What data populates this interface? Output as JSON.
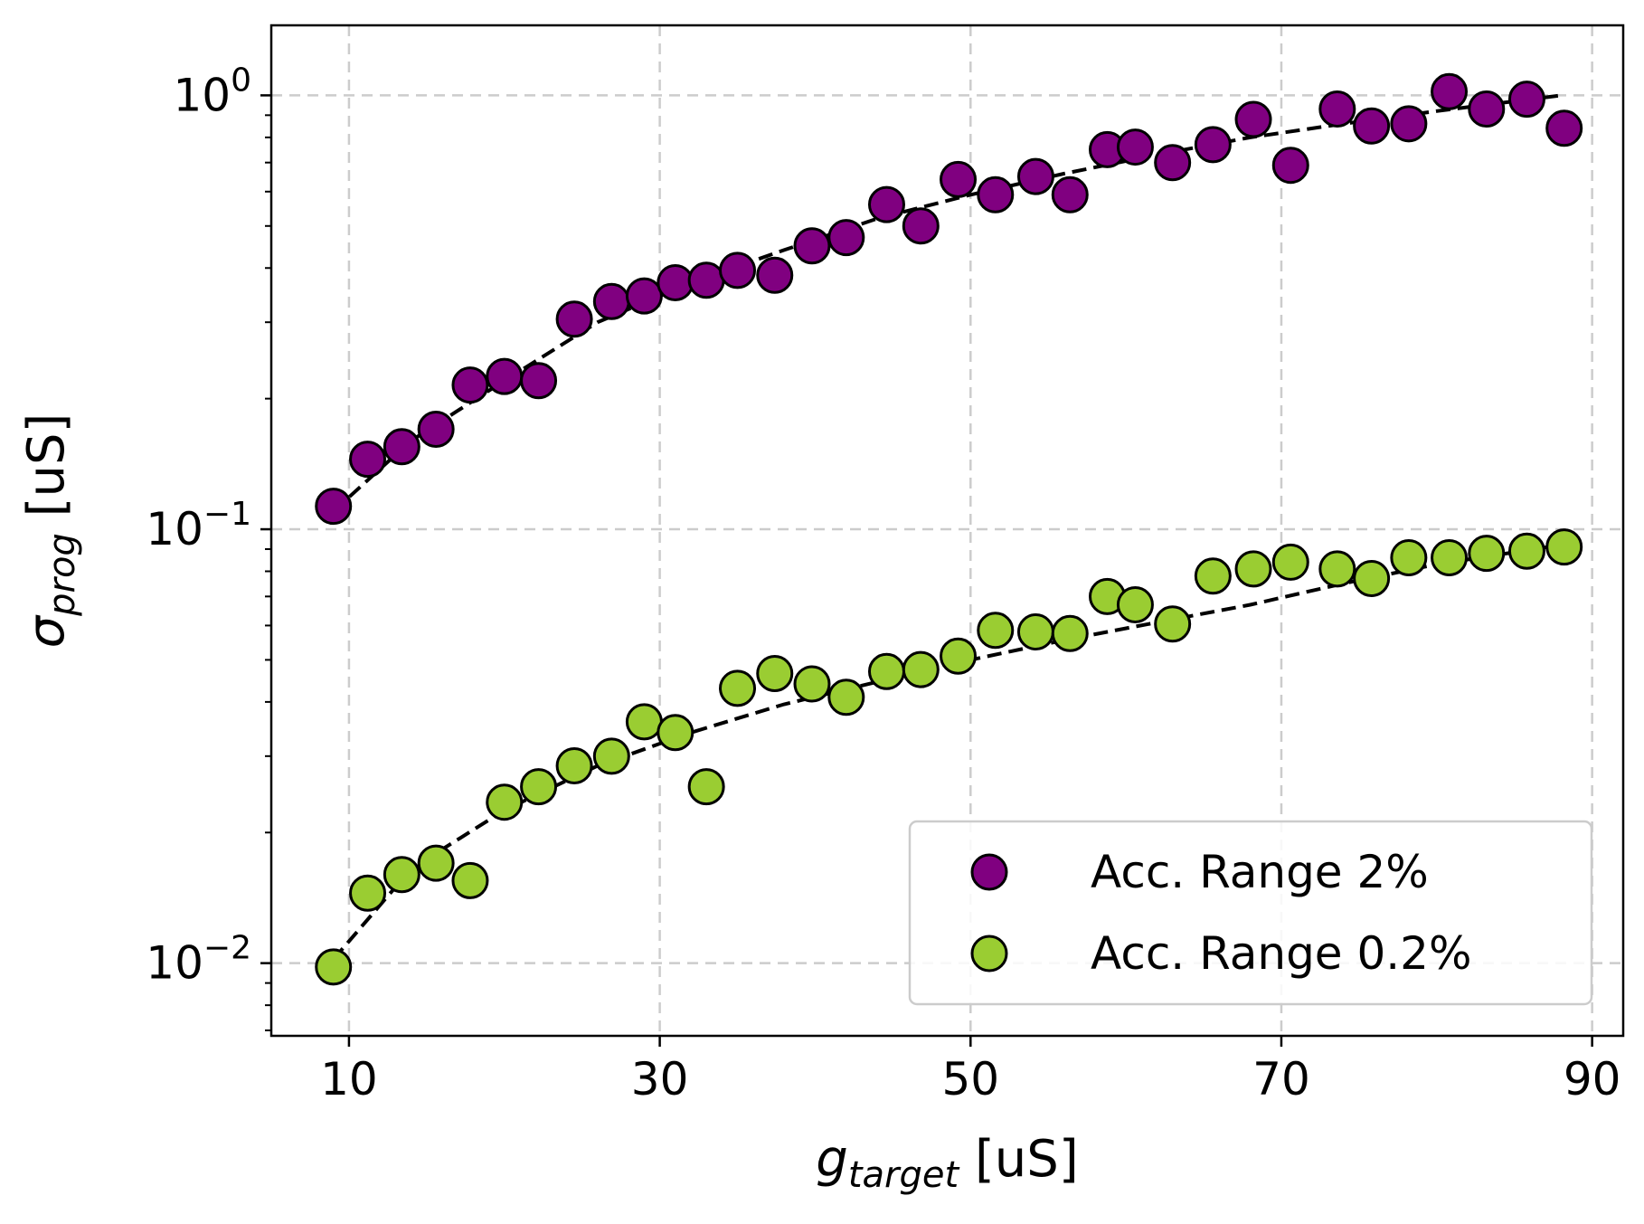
{
  "chart_data": {
    "type": "scatter",
    "xlabel": {
      "base": "g",
      "sub": "target",
      "unit": " [uS]"
    },
    "ylabel": {
      "base": "σ",
      "sub": "prog",
      "unit": " [uS]"
    },
    "xlim": [
      5,
      92
    ],
    "ylim": [
      0.0068,
      1.45
    ],
    "yscale": "log",
    "xticks": [
      10,
      30,
      50,
      70,
      90
    ],
    "xtick_labels": [
      "10",
      "30",
      "50",
      "70",
      "90"
    ],
    "yticks": [
      {
        "value": 0.01,
        "base": "10",
        "exp": "−2"
      },
      {
        "value": 0.1,
        "base": "10",
        "exp": "−1"
      },
      {
        "value": 1,
        "base": "10",
        "exp": "0"
      }
    ],
    "grid": true,
    "legend_position": "bottom-right",
    "series": [
      {
        "name": "Acc. Range 2%",
        "color": "#800080",
        "x": [
          9,
          11.2,
          13.4,
          15.6,
          17.8,
          20,
          22.2,
          24.5,
          26.9,
          29,
          31,
          33,
          35,
          37.4,
          39.8,
          42,
          44.6,
          46.8,
          49.2,
          51.6,
          54.2,
          56.4,
          58.8,
          60.6,
          63,
          65.6,
          68.2,
          70.6,
          73.6,
          75.8,
          78.2,
          80.8,
          83.2,
          85.8,
          88.2
        ],
        "y": [
          0.113,
          0.145,
          0.155,
          0.17,
          0.215,
          0.225,
          0.22,
          0.305,
          0.335,
          0.345,
          0.37,
          0.375,
          0.395,
          0.385,
          0.45,
          0.47,
          0.56,
          0.5,
          0.64,
          0.59,
          0.65,
          0.59,
          0.75,
          0.76,
          0.7,
          0.77,
          0.88,
          0.69,
          0.93,
          0.85,
          0.86,
          1.02,
          0.93,
          0.98,
          0.84
        ]
      },
      {
        "name": "Acc. Range 0.2%",
        "color": "#9ACD32",
        "x": [
          9,
          11.2,
          13.4,
          15.6,
          17.8,
          20,
          22.2,
          24.5,
          26.9,
          29,
          31,
          33,
          35,
          37.4,
          39.8,
          42,
          44.6,
          46.8,
          49.2,
          51.6,
          54.2,
          56.4,
          58.8,
          60.6,
          63,
          65.6,
          68.2,
          70.6,
          73.6,
          75.8,
          78.2,
          80.8,
          83.2,
          85.8,
          88.2
        ],
        "y": [
          0.0098,
          0.0145,
          0.016,
          0.017,
          0.0155,
          0.0235,
          0.0255,
          0.0285,
          0.03,
          0.036,
          0.034,
          0.0255,
          0.043,
          0.0465,
          0.044,
          0.041,
          0.047,
          0.0475,
          0.051,
          0.0585,
          0.058,
          0.0575,
          0.07,
          0.067,
          0.0605,
          0.078,
          0.081,
          0.084,
          0.081,
          0.077,
          0.086,
          0.086,
          0.088,
          0.089,
          0.091
        ]
      }
    ],
    "fits": [
      {
        "series": "Acc. Range 2%",
        "x": [
          9,
          14,
          20,
          26,
          32,
          38,
          44,
          50,
          56,
          62,
          68,
          74,
          80,
          88
        ],
        "y": [
          0.11,
          0.16,
          0.22,
          0.3,
          0.37,
          0.44,
          0.52,
          0.59,
          0.66,
          0.73,
          0.8,
          0.86,
          0.92,
          1.0
        ]
      },
      {
        "series": "Acc. Range 0.2%",
        "x": [
          9,
          14,
          20,
          26,
          32,
          38,
          44,
          50,
          56,
          62,
          68,
          74,
          80,
          88
        ],
        "y": [
          0.0102,
          0.0165,
          0.0225,
          0.0285,
          0.034,
          0.0395,
          0.0445,
          0.05,
          0.0555,
          0.061,
          0.067,
          0.075,
          0.083,
          0.092
        ]
      }
    ]
  }
}
